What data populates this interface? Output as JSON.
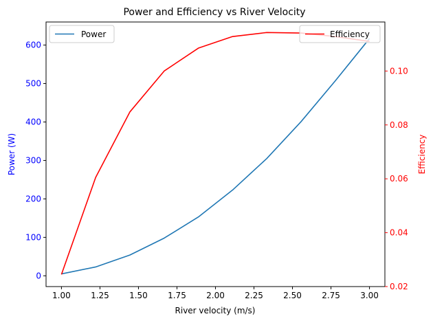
{
  "chart_data": {
    "type": "line",
    "title": "Power and Efficiency vs River Velocity",
    "xlabel": "River velocity (m/s)",
    "ylabel_left": "Power (W)",
    "ylabel_right": "Efficiency",
    "xlim": [
      0.9,
      3.1
    ],
    "ylim_left": [
      -28,
      660
    ],
    "ylim_right": [
      0.02,
      0.1182
    ],
    "x_ticks": [
      1.0,
      1.25,
      1.5,
      1.75,
      2.0,
      2.25,
      2.5,
      2.75,
      3.0
    ],
    "x_tick_labels": [
      "1.00",
      "1.25",
      "1.50",
      "1.75",
      "2.00",
      "2.25",
      "2.50",
      "2.75",
      "3.00"
    ],
    "y_left_ticks": [
      0,
      100,
      200,
      300,
      400,
      500,
      600
    ],
    "y_left_tick_labels": [
      "0",
      "100",
      "200",
      "300",
      "400",
      "500",
      "600"
    ],
    "y_right_ticks": [
      0.02,
      0.04,
      0.06,
      0.08,
      0.1
    ],
    "y_right_tick_labels": [
      "0.02",
      "0.04",
      "0.06",
      "0.08",
      "0.10"
    ],
    "x": [
      1.0,
      1.222,
      1.444,
      1.667,
      1.889,
      2.111,
      2.333,
      2.556,
      2.778,
      3.0
    ],
    "series": [
      {
        "name": "Power",
        "axis": "left",
        "color": "#1f77b4",
        "values": [
          5,
          23,
          54,
          98,
          153,
          223,
          305,
          401,
          507,
          617
        ]
      },
      {
        "name": "Efficiency",
        "axis": "right",
        "color": "#ff0000",
        "values": [
          0.0245,
          0.0605,
          0.0848,
          0.1,
          0.1085,
          0.1128,
          0.1143,
          0.1141,
          0.1128,
          0.111
        ]
      }
    ],
    "left_axis_color": "#0000ff",
    "right_axis_color": "#ff0000",
    "legend_left": "top-left",
    "legend_right": "top-right",
    "grid": false
  }
}
